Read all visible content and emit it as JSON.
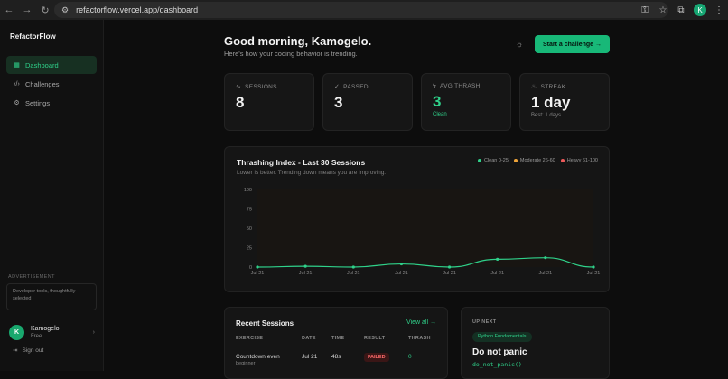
{
  "browser": {
    "url": "refactorflow.vercel.app/dashboard",
    "profile_initial": "K"
  },
  "sidebar": {
    "brand": "RefactorFlow",
    "items": [
      {
        "label": "Dashboard",
        "icon": "grid-icon",
        "active": true
      },
      {
        "label": "Challenges",
        "icon": "code-icon",
        "active": false
      },
      {
        "label": "Settings",
        "icon": "gear-icon",
        "active": false
      }
    ],
    "ad_label": "ADVERTISEMENT",
    "ad_text": "Developer tools, thoughtfully selected",
    "user": {
      "initial": "K",
      "name": "Kamogelo",
      "plan": "Free"
    },
    "sign_out": "Sign out"
  },
  "header": {
    "greeting": "Good morning, Kamogelo.",
    "subtitle": "Here's how your coding behavior is trending.",
    "cta_label": "Start a challenge →"
  },
  "stats": [
    {
      "label": "SESSIONS",
      "icon": "pulse-icon",
      "value": "8",
      "note": ""
    },
    {
      "label": "PASSED",
      "icon": "check-circle-icon",
      "value": "3",
      "note": ""
    },
    {
      "label": "AVG THRASH",
      "icon": "bolt-icon",
      "value": "3",
      "note": "Clean"
    },
    {
      "label": "STREAK",
      "icon": "flame-icon",
      "value": "1 day",
      "note": "Best: 1 days"
    }
  ],
  "chart_data": {
    "type": "line",
    "title": "Thrashing Index - Last 30 Sessions",
    "subtitle": "Lower is better. Trending down means you are improving.",
    "legend": [
      {
        "label": "Clean 0-25",
        "color": "#2fd18a"
      },
      {
        "label": "Moderate 26-60",
        "color": "#f0a53a"
      },
      {
        "label": "Heavy 61-100",
        "color": "#ef5a5a"
      }
    ],
    "legend_placement": "top-right",
    "x": [
      "Jul 21",
      "Jul 21",
      "Jul 21",
      "Jul 21",
      "Jul 21",
      "Jul 21",
      "Jul 21",
      "Jul 21"
    ],
    "values": [
      0,
      1,
      0,
      4,
      0,
      10,
      12,
      0
    ],
    "yticks": [
      "0",
      "25",
      "50",
      "75",
      "100"
    ],
    "ylim": [
      0,
      100
    ],
    "line_color": "#2fd18a",
    "grid": false
  },
  "recent": {
    "title": "Recent Sessions",
    "view_all": "View all →",
    "columns": [
      "EXERCISE",
      "DATE",
      "TIME",
      "RESULT",
      "THRASH"
    ],
    "rows": [
      {
        "exercise": "Countdown even",
        "level": "beginner",
        "date": "Jul 21",
        "time": "48s",
        "result": "FAILED",
        "thrash": "0"
      }
    ]
  },
  "up_next": {
    "label": "UP NEXT",
    "topic": "Python Fundamentals",
    "title": "Do not panic",
    "code": "do_not_panic()"
  }
}
